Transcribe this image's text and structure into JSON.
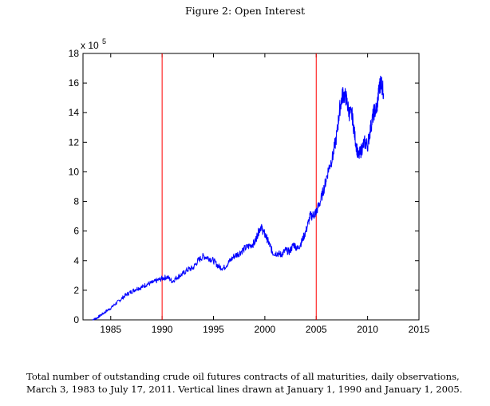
{
  "figure_title": "Figure 2: Open Interest",
  "caption": "Total number of outstanding crude oil futures contracts of all maturities, daily observations, March 3, 1983 to July 17, 2011. Vertical lines drawn at January 1, 1990 and January 1, 2005.",
  "chart_data": {
    "type": "line",
    "title": "",
    "xlabel": "",
    "ylabel": "",
    "y_multiplier_label": "x 10",
    "y_multiplier_exponent": "5",
    "xlim": [
      1982.3,
      2015
    ],
    "ylim": [
      0,
      18
    ],
    "x_ticks": [
      1985,
      1990,
      1995,
      2000,
      2005,
      2010,
      2015
    ],
    "y_ticks": [
      0,
      2,
      4,
      6,
      8,
      10,
      12,
      14,
      16,
      18
    ],
    "grid": false,
    "line_color": "#0000ff",
    "vline_color": "#ff0000",
    "vlines": [
      1990,
      2005
    ],
    "series": [
      {
        "x": [
          1983.2,
          1983.6,
          1984.0,
          1984.5,
          1985.0,
          1985.5,
          1986.0,
          1986.5,
          1987.0,
          1987.5,
          1988.0,
          1988.5,
          1989.0,
          1989.5,
          1990.0,
          1990.5,
          1991.0,
          1991.5,
          1992.0,
          1992.5,
          1993.0,
          1993.5,
          1994.0,
          1994.5,
          1995.0,
          1995.5,
          1996.0,
          1996.5,
          1997.0,
          1997.5,
          1998.0,
          1998.5,
          1999.0,
          1999.3,
          1999.6,
          1999.9,
          2000.2,
          2000.5,
          2000.8,
          2001.2,
          2001.6,
          2002.0,
          2002.4,
          2002.8,
          2003.2,
          2003.6,
          2004.0,
          2004.4,
          2004.8,
          2005.0,
          2005.4,
          2005.8,
          2006.2,
          2006.6,
          2007.0,
          2007.3,
          2007.6,
          2007.9,
          2008.2,
          2008.5,
          2008.8,
          2009.1,
          2009.4,
          2009.7,
          2010.0,
          2010.3,
          2010.6,
          2010.9,
          2011.1,
          2011.3,
          2011.55
        ],
        "values": [
          0.0,
          0.1,
          0.3,
          0.55,
          0.8,
          1.1,
          1.4,
          1.7,
          1.9,
          2.1,
          2.2,
          2.4,
          2.5,
          2.65,
          2.8,
          2.9,
          2.6,
          2.9,
          3.1,
          3.4,
          3.5,
          4.0,
          4.3,
          4.2,
          4.0,
          3.6,
          3.5,
          3.9,
          4.3,
          4.5,
          4.8,
          5.0,
          5.2,
          5.8,
          6.3,
          5.9,
          5.5,
          5.0,
          4.5,
          4.5,
          4.4,
          4.7,
          4.6,
          5.1,
          4.8,
          5.3,
          6.0,
          7.0,
          7.1,
          7.3,
          8.0,
          9.0,
          10.2,
          11.0,
          12.5,
          14.3,
          15.3,
          15.0,
          14.0,
          13.8,
          12.2,
          11.0,
          11.5,
          12.0,
          11.8,
          13.0,
          14.0,
          14.3,
          15.5,
          16.2,
          15.3
        ]
      }
    ]
  }
}
